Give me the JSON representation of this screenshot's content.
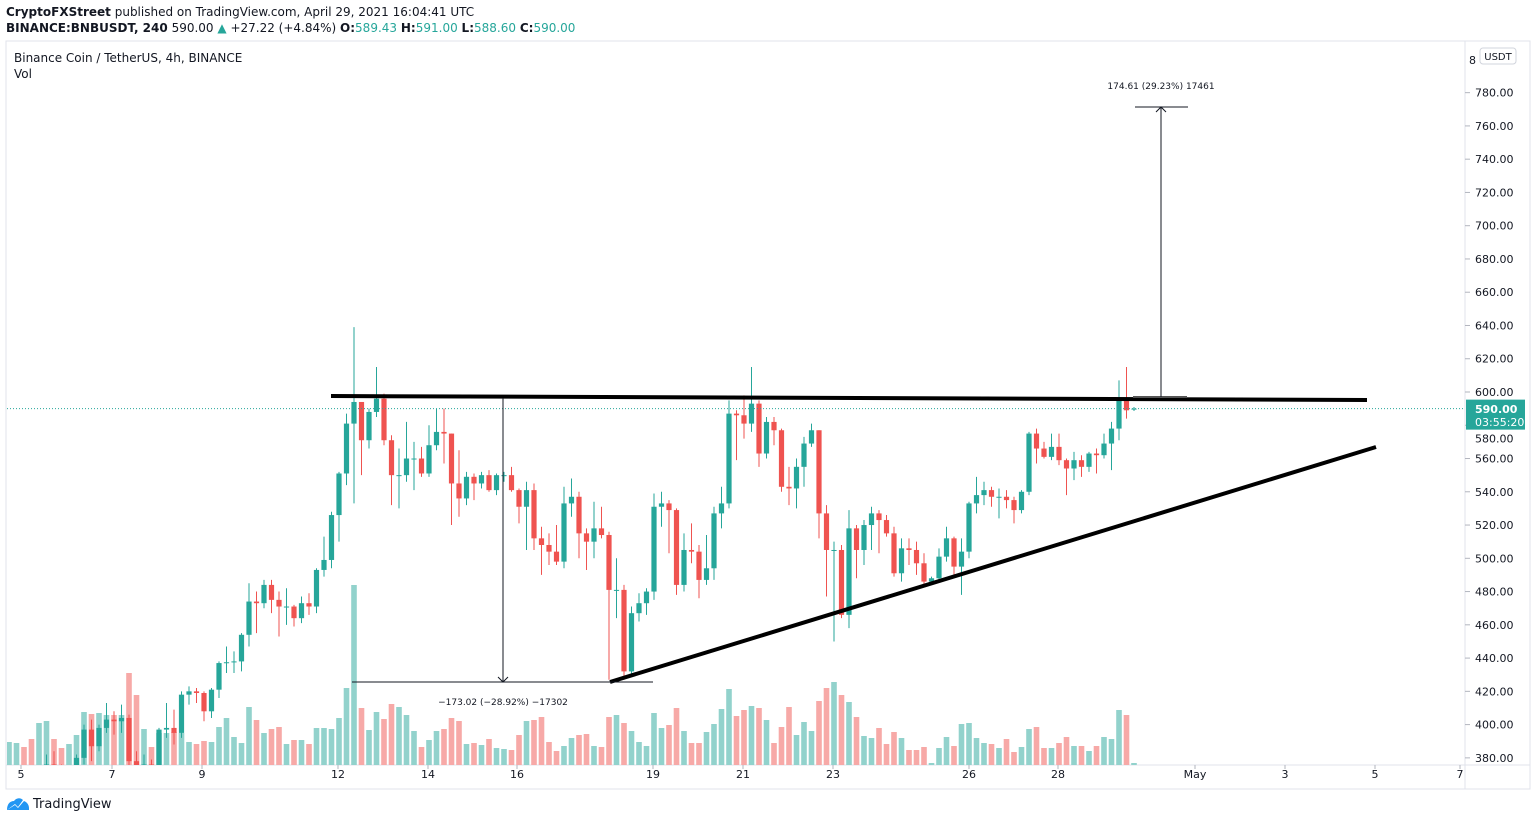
{
  "header": {
    "publisher": "CryptoFXStreet",
    "published_text": "published on TradingView.com, April 29, 2021 16:04:41 UTC",
    "symbol": "BINANCE:BNBUSDT, 240",
    "last_price": "590.00",
    "change": "+27.22 (+4.84%)",
    "o_label": "O:",
    "o_value": "589.43",
    "h_label": "H:",
    "h_value": "591.00",
    "l_label": "L:",
    "l_value": "588.60",
    "c_label": "C:",
    "c_value": "590.00"
  },
  "legend": {
    "title": "Binance Coin / TetherUS, 4h, BINANCE",
    "volume_label": "Vol"
  },
  "footer": {
    "brand": "TradingView"
  },
  "colors": {
    "up": "#26a69a",
    "down": "#ef5350",
    "up_vol": "#92d2cc",
    "down_vol": "#f7a9a7",
    "price_line": "#26a69a"
  },
  "chart_data": {
    "type": "candlestick",
    "title": "Binance Coin / TetherUS, 4h, BINANCE",
    "currency_label": "USDT",
    "ylim": [
      380,
      800
    ],
    "y_ticks": [
      "380.00",
      "400.00",
      "420.00",
      "440.00",
      "460.00",
      "480.00",
      "500.00",
      "520.00",
      "540.00",
      "560.00",
      "580.00",
      "600.00",
      "620.00",
      "640.00",
      "660.00",
      "680.00",
      "700.00",
      "720.00",
      "740.00",
      "760.00",
      "780.00"
    ],
    "y_top_partial": "8",
    "x_ticks": [
      "5",
      "7",
      "9",
      "12",
      "14",
      "16",
      "19",
      "21",
      "23",
      "26",
      "28",
      "May",
      "3",
      "5",
      "7"
    ],
    "current_price_label": "590.00",
    "countdown": "03:55:20",
    "current_price": 590.0,
    "candle_fields": [
      "open",
      "high",
      "low",
      "close",
      "volume_relative"
    ],
    "candles": [
      [
        362,
        368,
        358,
        366,
        23
      ],
      [
        366,
        372,
        362,
        370,
        22
      ],
      [
        370,
        373,
        364,
        366,
        18
      ],
      [
        366,
        369,
        360,
        362,
        26
      ],
      [
        362,
        372,
        360,
        370,
        42
      ],
      [
        370,
        382,
        368,
        376,
        44
      ],
      [
        376,
        384,
        370,
        372,
        26
      ],
      [
        372,
        376,
        366,
        368,
        17
      ],
      [
        368,
        374,
        365,
        372,
        21
      ],
      [
        372,
        382,
        370,
        380,
        30
      ],
      [
        380,
        400,
        376,
        397,
        53
      ],
      [
        397,
        403,
        378,
        387,
        51
      ],
      [
        387,
        400,
        384,
        398,
        52
      ],
      [
        398,
        413,
        395,
        403,
        50
      ],
      [
        403,
        408,
        394,
        402,
        50
      ],
      [
        402,
        412,
        395,
        404,
        50
      ],
      [
        404,
        406,
        370,
        378,
        92
      ],
      [
        378,
        384,
        372,
        375,
        70
      ],
      [
        375,
        382,
        372,
        376,
        36
      ],
      [
        376,
        379,
        368,
        372,
        18
      ],
      [
        372,
        398,
        370,
        397,
        32
      ],
      [
        397,
        413,
        392,
        398,
        32
      ],
      [
        398,
        409,
        388,
        395,
        33
      ],
      [
        395,
        420,
        392,
        418,
        32
      ],
      [
        418,
        423,
        412,
        420,
        23
      ],
      [
        420,
        422,
        413,
        419,
        21
      ],
      [
        419,
        420,
        402,
        408,
        24
      ],
      [
        408,
        422,
        404,
        421,
        23
      ],
      [
        421,
        438,
        416,
        437,
        38
      ],
      [
        437,
        447,
        431,
        437.5,
        47
      ],
      [
        437.5,
        444,
        431,
        438,
        28
      ],
      [
        438,
        455,
        432,
        454,
        22
      ],
      [
        454,
        485,
        447,
        474,
        58
      ],
      [
        474,
        480,
        455,
        473,
        45
      ],
      [
        473,
        487,
        470,
        484,
        32
      ],
      [
        484,
        487,
        467,
        475,
        36
      ],
      [
        475,
        480,
        453,
        471,
        38
      ],
      [
        471,
        482,
        460,
        471,
        21
      ],
      [
        471,
        472,
        459,
        464,
        25
      ],
      [
        464,
        477,
        461,
        473,
        25
      ],
      [
        473,
        479,
        466,
        471,
        21
      ],
      [
        471,
        494,
        467,
        493,
        37
      ],
      [
        493,
        513,
        489,
        499,
        37
      ],
      [
        499,
        528,
        494,
        526,
        36
      ],
      [
        526,
        552,
        510,
        551,
        47
      ],
      [
        551,
        587,
        544,
        581,
        77
      ],
      [
        581,
        639,
        533,
        594,
        180
      ],
      [
        594,
        594,
        550,
        571,
        57
      ],
      [
        571,
        590,
        566,
        588,
        35
      ],
      [
        588,
        615,
        585,
        596,
        53
      ],
      [
        596,
        599,
        568,
        571,
        46
      ],
      [
        571,
        574,
        532,
        550,
        61
      ],
      [
        550,
        566,
        530,
        550,
        58
      ],
      [
        550,
        582,
        546,
        560,
        50
      ],
      [
        560,
        570,
        541,
        560,
        34
      ],
      [
        560,
        567,
        549,
        551,
        18
      ],
      [
        551,
        580,
        549,
        568,
        25
      ],
      [
        568,
        590,
        565,
        576,
        34
      ],
      [
        576,
        590,
        557,
        575,
        36
      ],
      [
        575,
        575,
        520,
        545,
        47
      ],
      [
        545,
        565,
        525,
        536,
        44
      ],
      [
        536,
        552,
        532,
        549,
        21
      ],
      [
        549,
        551,
        535,
        545,
        22
      ],
      [
        545,
        552,
        542,
        550,
        20
      ],
      [
        550,
        553,
        540,
        541,
        26
      ],
      [
        541,
        551,
        538,
        550,
        17
      ],
      [
        550,
        552,
        546,
        550,
        16
      ],
      [
        550,
        555,
        540,
        541,
        15
      ],
      [
        541,
        542,
        521,
        531,
        30
      ],
      [
        531,
        546,
        505,
        541,
        44
      ],
      [
        541,
        545,
        505,
        512,
        45
      ],
      [
        512,
        519,
        490,
        508,
        48
      ],
      [
        508,
        515,
        496,
        504,
        23
      ],
      [
        504,
        520,
        496,
        498,
        14
      ],
      [
        498,
        543,
        494,
        533,
        19
      ],
      [
        533,
        548,
        525,
        537,
        27
      ],
      [
        537,
        540,
        500,
        515,
        30
      ],
      [
        515,
        518,
        493,
        510,
        31
      ],
      [
        510,
        534,
        500,
        518,
        19
      ],
      [
        518,
        531,
        512,
        514,
        18
      ],
      [
        514,
        516,
        427,
        481,
        48
      ],
      [
        481,
        500,
        464,
        481,
        50
      ],
      [
        481,
        484,
        427,
        432,
        42
      ],
      [
        432,
        471,
        430,
        467,
        34
      ],
      [
        467,
        479,
        462,
        473,
        23
      ],
      [
        473,
        482,
        466,
        480,
        19
      ],
      [
        480,
        539,
        475,
        531,
        52
      ],
      [
        531,
        540,
        519,
        533,
        37
      ],
      [
        533,
        535,
        503,
        529,
        40
      ],
      [
        529,
        530,
        478,
        484,
        57
      ],
      [
        484,
        515,
        480,
        505,
        34
      ],
      [
        505,
        521,
        497,
        504,
        22
      ],
      [
        504,
        508,
        476,
        487,
        22
      ],
      [
        487,
        514,
        484,
        494,
        33
      ],
      [
        494,
        531,
        487,
        527,
        41
      ],
      [
        527,
        543,
        518,
        533,
        56
      ],
      [
        533,
        595,
        530,
        587,
        76
      ],
      [
        587,
        589,
        559,
        586,
        49
      ],
      [
        586,
        598,
        572,
        581,
        55
      ],
      [
        581,
        615,
        576,
        593,
        59
      ],
      [
        593,
        595,
        555,
        563,
        57
      ],
      [
        563,
        585,
        560,
        582,
        45
      ],
      [
        582,
        585,
        568,
        577,
        22
      ],
      [
        577,
        578,
        540,
        543,
        38
      ],
      [
        543,
        555,
        532,
        542,
        58
      ],
      [
        542,
        560,
        530,
        555,
        30
      ],
      [
        555,
        573,
        543,
        569,
        43
      ],
      [
        569,
        581,
        567,
        577,
        34
      ],
      [
        577,
        577,
        512,
        527,
        64
      ],
      [
        527,
        532,
        477,
        505,
        77
      ],
      [
        505,
        510,
        450,
        505,
        83
      ],
      [
        505,
        508,
        464,
        466,
        70
      ],
      [
        466,
        529,
        458,
        518,
        63
      ],
      [
        518,
        520,
        488,
        505,
        48
      ],
      [
        505,
        523,
        496,
        520,
        29
      ],
      [
        520,
        531,
        505,
        527,
        27
      ],
      [
        527,
        529,
        503,
        523,
        37
      ],
      [
        523,
        526,
        513,
        515,
        21
      ],
      [
        515,
        519,
        489,
        491,
        33
      ],
      [
        491,
        512,
        486,
        506,
        27
      ],
      [
        506,
        512,
        496,
        505,
        15
      ],
      [
        505,
        510,
        490,
        497,
        15
      ],
      [
        497,
        503,
        484,
        486,
        18
      ],
      [
        486,
        489,
        484,
        488,
        2
      ],
      [
        488,
        506,
        486,
        501,
        17
      ],
      [
        501,
        519,
        498,
        512,
        28
      ],
      [
        512,
        513,
        489,
        495,
        19
      ],
      [
        495,
        512,
        478,
        504,
        41
      ],
      [
        504,
        534,
        500,
        533,
        42
      ],
      [
        533,
        549,
        527,
        538,
        27
      ],
      [
        538,
        546,
        532,
        541,
        22
      ],
      [
        541,
        543,
        531,
        537,
        21
      ],
      [
        537,
        542,
        524,
        537,
        17
      ],
      [
        537,
        541,
        530,
        535,
        26
      ],
      [
        535,
        537,
        521,
        529,
        13
      ],
      [
        529,
        541,
        527,
        540,
        18
      ],
      [
        540,
        576,
        538,
        575,
        36
      ],
      [
        575,
        578,
        557,
        566,
        38
      ],
      [
        566,
        570,
        560,
        561,
        17
      ],
      [
        561,
        575,
        559,
        567,
        17
      ],
      [
        567,
        575,
        556,
        559,
        22
      ],
      [
        559,
        560,
        538,
        554,
        28
      ],
      [
        554,
        564,
        547,
        559,
        19
      ],
      [
        559,
        562,
        549,
        555,
        19
      ],
      [
        555,
        564,
        552,
        563,
        14
      ],
      [
        563,
        566,
        551,
        562,
        19
      ],
      [
        562,
        575,
        560,
        569,
        28
      ],
      [
        569,
        582,
        553,
        578,
        26
      ],
      [
        578,
        607,
        571,
        595,
        55
      ],
      [
        595,
        615,
        584,
        589,
        50
      ],
      [
        589.43,
        591,
        588.6,
        590,
        2
      ]
    ],
    "annotations": {
      "resistance_line_price": 598,
      "support_trendline": "ascending from 426 to ~567",
      "measure_down_label": "−173.02 (−28.92%) −17302",
      "measure_up_label": "174.61 (29.23%) 17461",
      "measure_up_from": 597,
      "measure_up_to": 771.6,
      "measure_down_from": 598,
      "measure_down_to": 425
    }
  }
}
